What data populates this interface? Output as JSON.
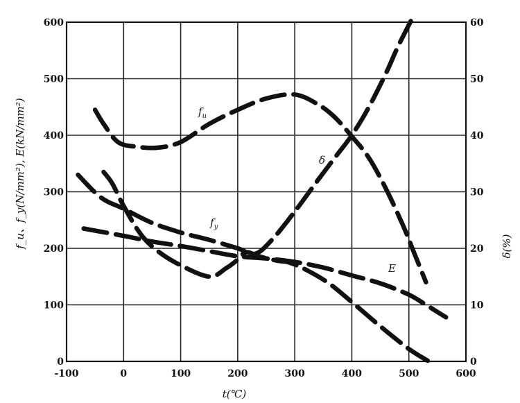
{
  "chart_data": {
    "type": "line",
    "title": "",
    "xlabel": "t(℃)",
    "ylabel": "f_u、f_y(N/mm²), E(kN/mm²)",
    "ylabel_right": "δ(%)",
    "xlim": [
      -100,
      600
    ],
    "ylim": [
      0,
      600
    ],
    "ylim_right": [
      0,
      60
    ],
    "x_ticks": [
      "-100",
      "0",
      "100",
      "200",
      "300",
      "400",
      "500",
      "600"
    ],
    "y_ticks": [
      "0",
      "100",
      "200",
      "300",
      "400",
      "500",
      "600"
    ],
    "y_ticks_right": [
      "0",
      "10",
      "20",
      "30",
      "40",
      "50",
      "60"
    ],
    "grid": true,
    "series": [
      {
        "name": "f_u",
        "axis": "left",
        "points": [
          [
            -50,
            445
          ],
          [
            -35,
            420
          ],
          [
            -10,
            388
          ],
          [
            20,
            380
          ],
          [
            60,
            378
          ],
          [
            100,
            388
          ],
          [
            150,
            420
          ],
          [
            200,
            445
          ],
          [
            250,
            465
          ],
          [
            300,
            472
          ],
          [
            340,
            455
          ],
          [
            370,
            432
          ],
          [
            400,
            398
          ],
          [
            430,
            360
          ],
          [
            460,
            305
          ],
          [
            490,
            240
          ],
          [
            510,
            190
          ],
          [
            530,
            140
          ]
        ]
      },
      {
        "name": "f_y",
        "axis": "left",
        "points": [
          [
            -35,
            335
          ],
          [
            -20,
            315
          ],
          [
            0,
            275
          ],
          [
            30,
            225
          ],
          [
            60,
            195
          ],
          [
            100,
            170
          ],
          [
            150,
            150
          ],
          [
            180,
            165
          ],
          [
            200,
            180
          ],
          [
            215,
            193
          ],
          [
            240,
            185
          ],
          [
            270,
            178
          ],
          [
            290,
            175
          ],
          [
            320,
            162
          ],
          [
            360,
            138
          ],
          [
            400,
            105
          ],
          [
            450,
            62
          ],
          [
            500,
            22
          ],
          [
            535,
            0
          ]
        ]
      },
      {
        "name": "E",
        "axis": "left",
        "points": [
          [
            -70,
            235
          ],
          [
            0,
            222
          ],
          [
            50,
            212
          ],
          [
            100,
            204
          ],
          [
            150,
            195
          ],
          [
            200,
            186
          ],
          [
            250,
            182
          ],
          [
            300,
            176
          ],
          [
            350,
            166
          ],
          [
            400,
            152
          ],
          [
            450,
            138
          ],
          [
            500,
            118
          ],
          [
            530,
            100
          ],
          [
            565,
            78
          ]
        ]
      },
      {
        "name": "δ",
        "axis": "right",
        "points": [
          [
            -80,
            33
          ],
          [
            -40,
            29
          ],
          [
            0,
            27
          ],
          [
            50,
            24.5
          ],
          [
            100,
            22.8
          ],
          [
            150,
            21.5
          ],
          [
            200,
            20
          ],
          [
            230,
            19
          ],
          [
            260,
            21.5
          ],
          [
            300,
            26.5
          ],
          [
            340,
            32
          ],
          [
            370,
            36
          ],
          [
            400,
            40
          ],
          [
            430,
            45
          ],
          [
            460,
            51
          ],
          [
            480,
            55.5
          ],
          [
            505,
            60.5
          ]
        ]
      }
    ]
  }
}
